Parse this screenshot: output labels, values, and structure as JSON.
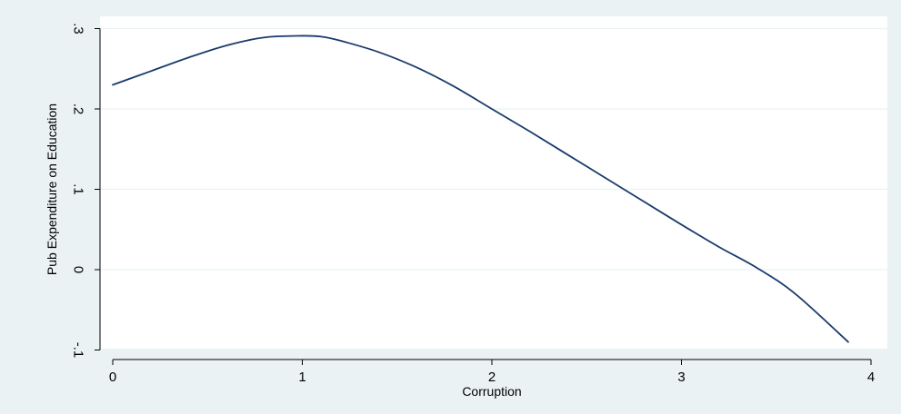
{
  "chart_data": {
    "type": "line",
    "title": "",
    "xlabel": "Corruption",
    "ylabel": "Pub Expenditure on Education",
    "xlim": [
      0,
      4
    ],
    "ylim": [
      -0.1,
      0.3
    ],
    "xticks": [
      0,
      1,
      2,
      3,
      4
    ],
    "xtick_labels": [
      "0",
      "1",
      "2",
      "3",
      "4"
    ],
    "yticks": [
      -0.1,
      0,
      0.1,
      0.2,
      0.3
    ],
    "ytick_labels": [
      "-.1",
      "0",
      ".1",
      ".2",
      ".3"
    ],
    "grid": true,
    "legend": "none",
    "series": [
      {
        "color": "#1a3b6b",
        "x": [
          0,
          0.2,
          0.4,
          0.6,
          0.8,
          1.0,
          1.1,
          1.2,
          1.4,
          1.6,
          1.8,
          2.0,
          2.2,
          2.4,
          2.6,
          2.8,
          3.0,
          3.2,
          3.4,
          3.6,
          3.88
        ],
        "y": [
          0.23,
          0.247,
          0.264,
          0.279,
          0.289,
          0.291,
          0.29,
          0.285,
          0.271,
          0.252,
          0.228,
          0.2,
          0.172,
          0.143,
          0.114,
          0.085,
          0.056,
          0.028,
          0.002,
          -0.03,
          -0.09
        ]
      }
    ],
    "colors": {
      "background": "#eaf2f3",
      "plot_background": "#ffffff",
      "grid": "#eaf2f3",
      "axis": "#000000",
      "line": "#1a3b6b"
    }
  }
}
